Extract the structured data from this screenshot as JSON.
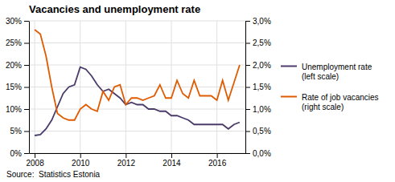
{
  "chart_data": {
    "type": "line",
    "title": "Vacancies and unemployment rate",
    "annotations": [
      "Source:  Statistics Estonia"
    ],
    "x": [
      2008.0,
      2008.25,
      2008.5,
      2008.75,
      2009.0,
      2009.25,
      2009.5,
      2009.75,
      2010.0,
      2010.25,
      2010.5,
      2010.75,
      2011.0,
      2011.25,
      2011.5,
      2011.75,
      2012.0,
      2012.25,
      2012.5,
      2012.75,
      2013.0,
      2013.25,
      2013.5,
      2013.75,
      2014.0,
      2014.25,
      2014.5,
      2014.75,
      2015.0,
      2015.25,
      2015.5,
      2015.75,
      2016.0,
      2016.25,
      2016.5,
      2016.75,
      2017.0
    ],
    "series": [
      {
        "name": "Unemployment rate\n(left scale)",
        "color": "#4B3B6B",
        "values": [
          4.0,
          4.2,
          5.5,
          7.5,
          10.5,
          13.5,
          15.0,
          15.5,
          19.5,
          19.0,
          17.5,
          15.5,
          14.0,
          14.5,
          13.5,
          12.5,
          11.0,
          11.5,
          11.0,
          11.0,
          10.0,
          10.0,
          9.5,
          9.5,
          8.5,
          8.5,
          8.0,
          7.5,
          6.5,
          6.5,
          6.5,
          6.5,
          6.5,
          6.5,
          5.5,
          6.5,
          7.0
        ]
      },
      {
        "name": "Rate of job vacancies\n(right scale)",
        "color": "#E05A00",
        "axis": "y2",
        "values": [
          2.8,
          2.7,
          2.2,
          1.5,
          0.9,
          0.8,
          0.75,
          0.75,
          1.0,
          1.1,
          1.0,
          0.95,
          1.4,
          1.2,
          1.5,
          1.55,
          1.1,
          1.25,
          1.25,
          1.2,
          1.25,
          1.3,
          1.55,
          1.25,
          1.25,
          1.65,
          1.35,
          1.25,
          1.65,
          1.3,
          1.3,
          1.3,
          1.2,
          1.65,
          1.2,
          1.6,
          2.0
        ]
      }
    ],
    "xlim": [
      2007.75,
      2017.25
    ],
    "xticks": [
      2008,
      2010,
      2012,
      2014,
      2016
    ],
    "ylim": [
      0,
      30
    ],
    "yticks": [
      {
        "value": 0,
        "label": "0%"
      },
      {
        "value": 5,
        "label": "5%"
      },
      {
        "value": 10,
        "label": "10%"
      },
      {
        "value": 15,
        "label": "15%"
      },
      {
        "value": 20,
        "label": "20%"
      },
      {
        "value": 25,
        "label": "25%"
      },
      {
        "value": 30,
        "label": "30%"
      }
    ],
    "y2lim": [
      0,
      3.0
    ],
    "y2ticks": [
      {
        "value": 0.0,
        "label": "0,0%"
      },
      {
        "value": 0.5,
        "label": "0,5%"
      },
      {
        "value": 1.0,
        "label": "1,0%"
      },
      {
        "value": 1.5,
        "label": "1,5%"
      },
      {
        "value": 2.0,
        "label": "2,0%"
      },
      {
        "value": 2.5,
        "label": "2,5%"
      },
      {
        "value": 3.0,
        "label": "3,0%"
      }
    ],
    "grid": true,
    "legend": "right"
  }
}
